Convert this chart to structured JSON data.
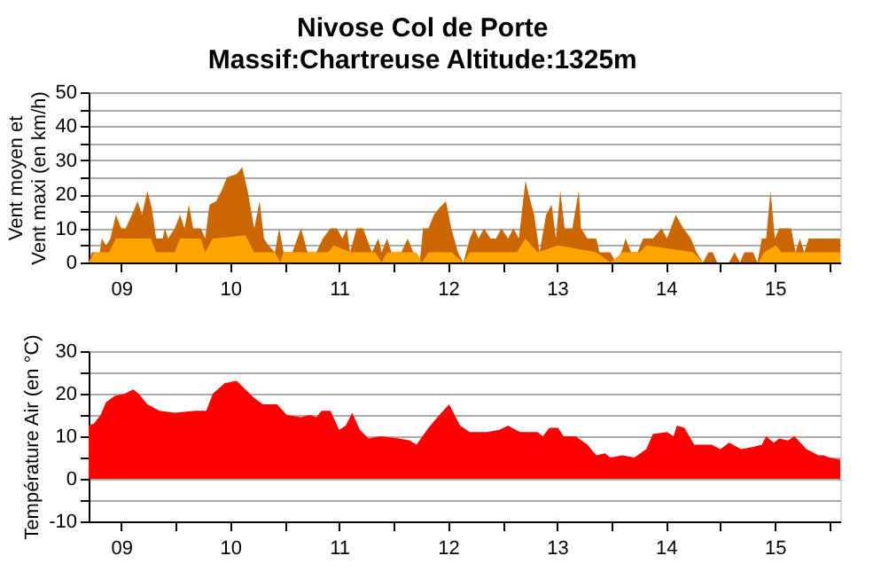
{
  "chart_data": [
    {
      "type": "area",
      "title": "Nivose Col de Porte",
      "subtitle": "Massif:Chartreuse Altitude:1325m",
      "ylabel": "Vent moyen et\nVent maxi (en km/h)",
      "xlim": [
        9.2,
        16.1
      ],
      "xticks": [
        {
          "value": 9.5,
          "label": "09"
        },
        {
          "value": 10.5,
          "label": "10"
        },
        {
          "value": 11.5,
          "label": "11"
        },
        {
          "value": 12.5,
          "label": "12"
        },
        {
          "value": 13.5,
          "label": "13"
        },
        {
          "value": 14.5,
          "label": "14"
        },
        {
          "value": 15.5,
          "label": "15"
        },
        {
          "value": 10,
          "label": null
        },
        {
          "value": 11,
          "label": null
        },
        {
          "value": 12,
          "label": null
        },
        {
          "value": 13,
          "label": null
        },
        {
          "value": 14,
          "label": null
        },
        {
          "value": 15,
          "label": null
        },
        {
          "value": 16,
          "label": null
        }
      ],
      "ylim": [
        0,
        50
      ],
      "yticks": [
        0,
        10,
        20,
        30,
        40,
        50,
        {
          "value": 5,
          "label": null
        },
        {
          "value": 15,
          "label": null
        },
        {
          "value": 25,
          "label": null
        },
        {
          "value": 35,
          "label": null
        },
        {
          "value": 45,
          "label": null
        }
      ],
      "grid": "y",
      "series": [
        {
          "color": "#cc6600",
          "x": [
            9.2,
            9.23,
            9.27,
            9.29,
            9.32,
            9.36,
            9.4,
            9.45,
            9.5,
            9.54,
            9.61,
            9.65,
            9.69,
            9.74,
            9.78,
            9.82,
            9.88,
            9.9,
            9.93,
            9.99,
            10.04,
            10.08,
            10.12,
            10.16,
            10.23,
            10.27,
            10.31,
            10.37,
            10.42,
            10.47,
            10.56,
            10.61,
            10.66,
            10.72,
            10.77,
            10.81,
            10.85,
            10.91,
            10.95,
            10.99,
            11.07,
            11.15,
            11.21,
            11.29,
            11.35,
            11.42,
            11.48,
            11.53,
            11.57,
            11.6,
            11.66,
            11.72,
            11.8,
            11.86,
            11.89,
            11.94,
            11.98,
            12.07,
            12.13,
            12.18,
            12.24,
            12.27,
            12.32,
            12.37,
            12.42,
            12.48,
            12.53,
            12.59,
            12.64,
            12.7,
            12.74,
            12.78,
            12.83,
            12.89,
            12.94,
            12.99,
            13.05,
            13.1,
            13.15,
            13.21,
            13.24,
            13.29,
            13.34,
            13.4,
            13.45,
            13.49,
            13.53,
            13.57,
            13.64,
            13.7,
            13.72,
            13.78,
            13.86,
            13.89,
            13.99,
            14.04,
            14.09,
            14.13,
            14.18,
            14.24,
            14.29,
            14.38,
            14.46,
            14.51,
            14.59,
            14.66,
            14.73,
            14.78,
            14.84,
            14.89,
            14.93,
            14.97,
            15.08,
            15.13,
            15.18,
            15.22,
            15.3,
            15.34,
            15.38,
            15.42,
            15.46,
            15.5,
            15.54,
            15.65,
            15.69,
            15.73,
            15.77,
            15.81,
            16.1
          ],
          "values": [
            0,
            3,
            3,
            0,
            7,
            5,
            7,
            14,
            10,
            10,
            15,
            18,
            14,
            21,
            16,
            7,
            7,
            10,
            7,
            10,
            14,
            10,
            17,
            10,
            10,
            7,
            17,
            18,
            21,
            25,
            26,
            28,
            21,
            10,
            18,
            7,
            5,
            3,
            10,
            3,
            3,
            10,
            3,
            3,
            7,
            10,
            10,
            7,
            10,
            3,
            10,
            10,
            3,
            7,
            3,
            7,
            3,
            3,
            7,
            3,
            0,
            10,
            10,
            14,
            16,
            18,
            10,
            3,
            0,
            7,
            10,
            7,
            10,
            7,
            7,
            10,
            7,
            10,
            7,
            24,
            20,
            14,
            3,
            14,
            17,
            7,
            21,
            10,
            10,
            21,
            10,
            7,
            7,
            3,
            3,
            0,
            3,
            7,
            3,
            3,
            7,
            7,
            10,
            7,
            14,
            10,
            7,
            3,
            0,
            3,
            3,
            0,
            0,
            3,
            0,
            3,
            3,
            0,
            7,
            7,
            21,
            7,
            10,
            10,
            3,
            7,
            3,
            7,
            7
          ]
        },
        {
          "color": "#ffa500",
          "x": [
            9.2,
            9.25,
            9.39,
            9.45,
            9.77,
            9.82,
            9.99,
            10.04,
            10.23,
            10.27,
            10.34,
            10.64,
            10.72,
            10.91,
            10.96,
            10.99,
            11.4,
            11.45,
            11.61,
            11.83,
            11.89,
            11.94,
            12.21,
            12.26,
            12.32,
            12.53,
            12.64,
            12.7,
            13.13,
            13.21,
            13.32,
            13.51,
            13.86,
            13.99,
            14.1,
            14.26,
            14.32,
            14.75,
            14.84,
            15.35,
            15.4,
            15.51,
            15.56,
            16.1
          ],
          "values": [
            0,
            3,
            3,
            7,
            7,
            3,
            3,
            7,
            7,
            3,
            7,
            8,
            3,
            3,
            0,
            3,
            3,
            5,
            3,
            3,
            0,
            3,
            3,
            0,
            3,
            3,
            0,
            3,
            3,
            7,
            3,
            5,
            3,
            0,
            3,
            3,
            5,
            3,
            0,
            0,
            3,
            5,
            3,
            3
          ]
        }
      ]
    },
    {
      "type": "area",
      "ylabel": "Température Air (en °C)",
      "xlim": [
        9.2,
        16.1
      ],
      "xticks": [
        {
          "value": 9.5,
          "label": "09"
        },
        {
          "value": 10.5,
          "label": "10"
        },
        {
          "value": 11.5,
          "label": "11"
        },
        {
          "value": 12.5,
          "label": "12"
        },
        {
          "value": 13.5,
          "label": "13"
        },
        {
          "value": 14.5,
          "label": "14"
        },
        {
          "value": 15.5,
          "label": "15"
        },
        {
          "value": 10,
          "label": null
        },
        {
          "value": 11,
          "label": null
        },
        {
          "value": 12,
          "label": null
        },
        {
          "value": 13,
          "label": null
        },
        {
          "value": 14,
          "label": null
        },
        {
          "value": 15,
          "label": null
        },
        {
          "value": 16,
          "label": null
        }
      ],
      "ylim": [
        -10,
        30
      ],
      "yticks": [
        -10,
        0,
        10,
        20,
        30,
        {
          "value": -5,
          "label": null
        },
        {
          "value": 5,
          "label": null
        },
        {
          "value": 15,
          "label": null
        },
        {
          "value": 25,
          "label": null
        }
      ],
      "grid": "y",
      "series": [
        {
          "color": "#ff0000",
          "x": [
            9.2,
            9.25,
            9.31,
            9.36,
            9.44,
            9.53,
            9.61,
            9.66,
            9.74,
            9.85,
            9.99,
            10.18,
            10.28,
            10.34,
            10.45,
            10.56,
            10.64,
            10.72,
            10.8,
            10.93,
            11.02,
            11.15,
            11.23,
            11.29,
            11.34,
            11.42,
            11.5,
            11.56,
            11.62,
            11.69,
            11.77,
            11.88,
            12.05,
            12.15,
            12.21,
            12.32,
            12.42,
            12.51,
            12.61,
            12.7,
            12.86,
            12.97,
            13.05,
            13.16,
            13.32,
            13.37,
            13.43,
            13.51,
            13.56,
            13.67,
            13.78,
            13.86,
            13.94,
            13.99,
            14.1,
            14.21,
            14.32,
            14.38,
            14.51,
            14.57,
            14.6,
            14.67,
            14.76,
            14.92,
            15.0,
            15.08,
            15.19,
            15.3,
            15.38,
            15.42,
            15.49,
            15.54,
            15.62,
            15.68,
            15.79,
            15.9,
            15.95,
            16.0,
            16.1
          ],
          "values": [
            12.5,
            13,
            15,
            18,
            19.5,
            20,
            21,
            20,
            17.5,
            16,
            15.5,
            16,
            16,
            20,
            22.5,
            23,
            21,
            19,
            17.5,
            17.5,
            15,
            14.5,
            15,
            14.5,
            16,
            16,
            11.5,
            12.5,
            15.5,
            11.5,
            9.5,
            10,
            9.5,
            9,
            8,
            12,
            15,
            17.5,
            12.5,
            11,
            11,
            11.5,
            12.5,
            11,
            11,
            10,
            12,
            12,
            10,
            10,
            8,
            5.5,
            6,
            5,
            5.5,
            5,
            7,
            10.5,
            11,
            10,
            12.5,
            12,
            8,
            8,
            7,
            8.5,
            7,
            7.5,
            8,
            10,
            8.5,
            9.5,
            9,
            10,
            7,
            5.5,
            5.5,
            5,
            4.5
          ]
        }
      ]
    }
  ]
}
